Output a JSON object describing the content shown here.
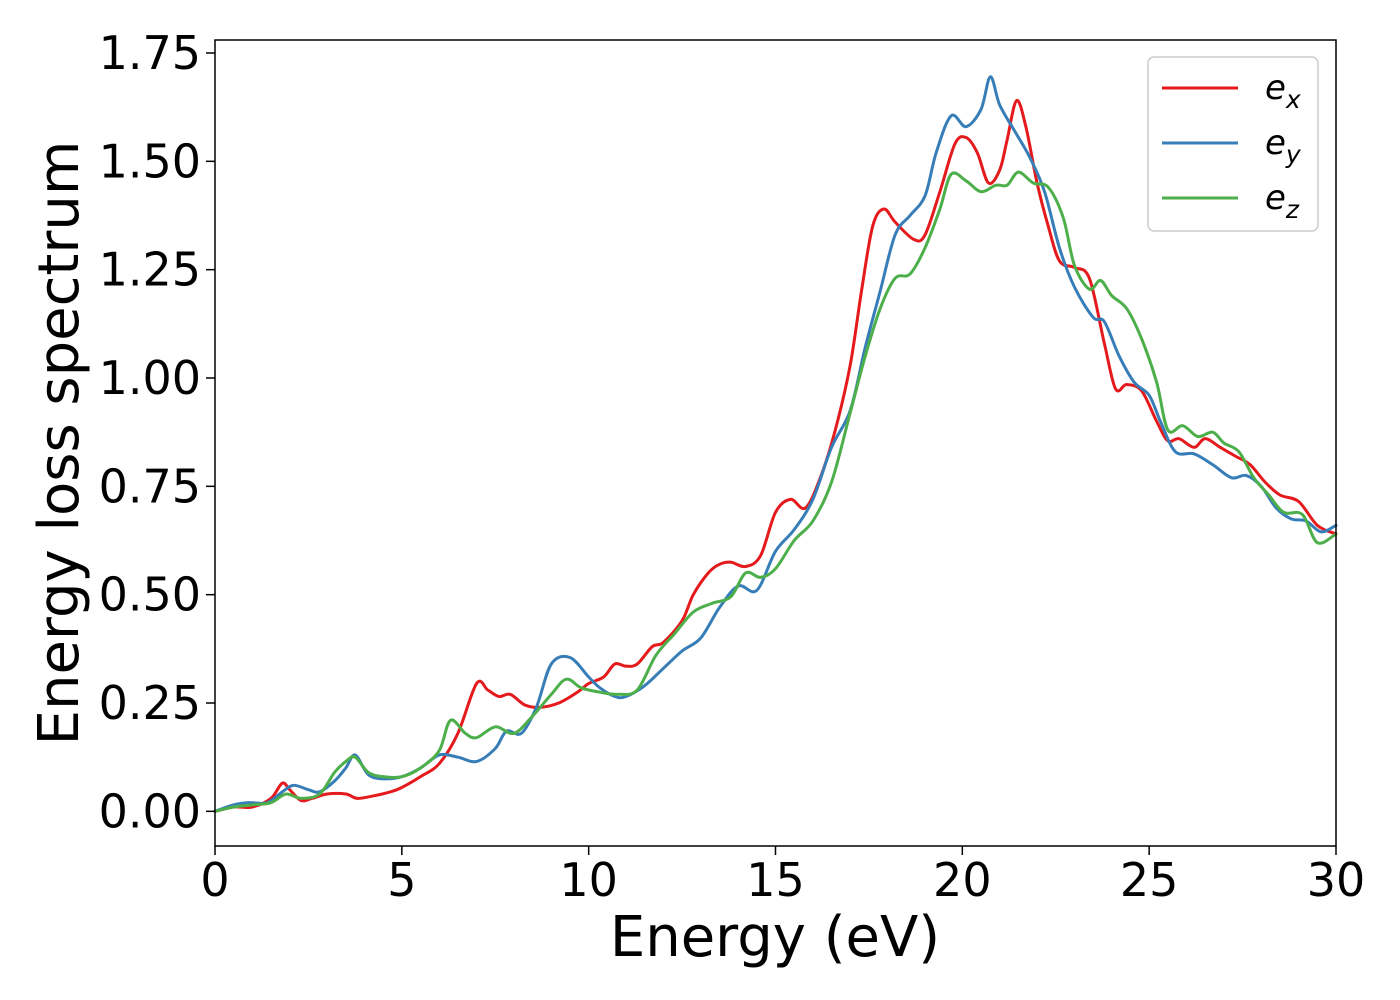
{
  "chart_data": {
    "type": "line",
    "title": "",
    "xlabel": "Energy (eV)",
    "ylabel": "Energy loss spectrum",
    "xlim": [
      0,
      30
    ],
    "ylim": [
      -0.08,
      1.78
    ],
    "xticks": [
      0,
      5,
      10,
      15,
      20,
      25,
      30
    ],
    "xtick_labels": [
      "0",
      "5",
      "10",
      "15",
      "20",
      "25",
      "30"
    ],
    "yticks": [
      0,
      0.25,
      0.5,
      0.75,
      1.0,
      1.25,
      1.5,
      1.75
    ],
    "ytick_labels": [
      "0.00",
      "0.25",
      "0.50",
      "0.75",
      "1.00",
      "1.25",
      "1.50",
      "1.75"
    ],
    "grid": false,
    "legend_position": "top-right",
    "series": [
      {
        "name": "x",
        "color": "#e41a1c",
        "points": [
          [
            0,
            0
          ],
          [
            0.5,
            0.01
          ],
          [
            1,
            0.01
          ],
          [
            1.5,
            0.03
          ],
          [
            1.8,
            0.065
          ],
          [
            2,
            0.05
          ],
          [
            2.3,
            0.025
          ],
          [
            2.6,
            0.03
          ],
          [
            3,
            0.04
          ],
          [
            3.5,
            0.04
          ],
          [
            3.8,
            0.03
          ],
          [
            4.2,
            0.035
          ],
          [
            4.7,
            0.045
          ],
          [
            5,
            0.055
          ],
          [
            5.5,
            0.08
          ],
          [
            6,
            0.11
          ],
          [
            6.5,
            0.18
          ],
          [
            7,
            0.295
          ],
          [
            7.3,
            0.28
          ],
          [
            7.6,
            0.265
          ],
          [
            7.9,
            0.27
          ],
          [
            8.3,
            0.245
          ],
          [
            8.7,
            0.24
          ],
          [
            9.2,
            0.25
          ],
          [
            9.7,
            0.275
          ],
          [
            10,
            0.295
          ],
          [
            10.4,
            0.31
          ],
          [
            10.7,
            0.34
          ],
          [
            11,
            0.335
          ],
          [
            11.3,
            0.34
          ],
          [
            11.7,
            0.38
          ],
          [
            12,
            0.39
          ],
          [
            12.5,
            0.44
          ],
          [
            12.8,
            0.5
          ],
          [
            13.2,
            0.55
          ],
          [
            13.5,
            0.57
          ],
          [
            13.8,
            0.575
          ],
          [
            14.2,
            0.565
          ],
          [
            14.6,
            0.59
          ],
          [
            15,
            0.69
          ],
          [
            15.4,
            0.72
          ],
          [
            15.8,
            0.7
          ],
          [
            16.2,
            0.77
          ],
          [
            16.6,
            0.88
          ],
          [
            17,
            1.03
          ],
          [
            17.3,
            1.2
          ],
          [
            17.6,
            1.35
          ],
          [
            17.9,
            1.39
          ],
          [
            18.2,
            1.36
          ],
          [
            18.7,
            1.32
          ],
          [
            19,
            1.33
          ],
          [
            19.4,
            1.43
          ],
          [
            19.8,
            1.54
          ],
          [
            20.1,
            1.555
          ],
          [
            20.4,
            1.52
          ],
          [
            20.7,
            1.45
          ],
          [
            21,
            1.48
          ],
          [
            21.2,
            1.55
          ],
          [
            21.45,
            1.64
          ],
          [
            21.7,
            1.58
          ],
          [
            22,
            1.45
          ],
          [
            22.3,
            1.35
          ],
          [
            22.6,
            1.27
          ],
          [
            23,
            1.255
          ],
          [
            23.4,
            1.23
          ],
          [
            23.8,
            1.08
          ],
          [
            24.1,
            0.975
          ],
          [
            24.4,
            0.985
          ],
          [
            24.8,
            0.97
          ],
          [
            25.2,
            0.9
          ],
          [
            25.5,
            0.855
          ],
          [
            25.8,
            0.86
          ],
          [
            26.2,
            0.84
          ],
          [
            26.5,
            0.86
          ],
          [
            26.9,
            0.84
          ],
          [
            27.3,
            0.82
          ],
          [
            27.7,
            0.8
          ],
          [
            28.1,
            0.76
          ],
          [
            28.5,
            0.73
          ],
          [
            29,
            0.715
          ],
          [
            29.5,
            0.66
          ],
          [
            30,
            0.64
          ]
        ]
      },
      {
        "name": "y",
        "color": "#377eb8",
        "points": [
          [
            0,
            0
          ],
          [
            0.5,
            0.015
          ],
          [
            0.9,
            0.02
          ],
          [
            1.4,
            0.02
          ],
          [
            1.8,
            0.045
          ],
          [
            2.1,
            0.06
          ],
          [
            2.5,
            0.05
          ],
          [
            2.8,
            0.045
          ],
          [
            3.2,
            0.07
          ],
          [
            3.5,
            0.1
          ],
          [
            3.75,
            0.13
          ],
          [
            4.1,
            0.085
          ],
          [
            4.5,
            0.075
          ],
          [
            5,
            0.08
          ],
          [
            5.5,
            0.1
          ],
          [
            6,
            0.13
          ],
          [
            6.5,
            0.125
          ],
          [
            7,
            0.115
          ],
          [
            7.5,
            0.145
          ],
          [
            7.8,
            0.185
          ],
          [
            8.2,
            0.18
          ],
          [
            8.6,
            0.24
          ],
          [
            9,
            0.34
          ],
          [
            9.5,
            0.355
          ],
          [
            10,
            0.31
          ],
          [
            10.3,
            0.285
          ],
          [
            10.7,
            0.265
          ],
          [
            11,
            0.265
          ],
          [
            11.5,
            0.29
          ],
          [
            12,
            0.33
          ],
          [
            12.5,
            0.37
          ],
          [
            13,
            0.4
          ],
          [
            13.5,
            0.47
          ],
          [
            14,
            0.52
          ],
          [
            14.5,
            0.51
          ],
          [
            15,
            0.6
          ],
          [
            15.5,
            0.65
          ],
          [
            16,
            0.72
          ],
          [
            16.5,
            0.84
          ],
          [
            17,
            0.925
          ],
          [
            17.4,
            1.07
          ],
          [
            17.8,
            1.2
          ],
          [
            18.2,
            1.33
          ],
          [
            18.6,
            1.375
          ],
          [
            19,
            1.42
          ],
          [
            19.3,
            1.52
          ],
          [
            19.7,
            1.605
          ],
          [
            20.1,
            1.58
          ],
          [
            20.5,
            1.62
          ],
          [
            20.75,
            1.695
          ],
          [
            21,
            1.63
          ],
          [
            21.4,
            1.57
          ],
          [
            21.8,
            1.51
          ],
          [
            22.2,
            1.43
          ],
          [
            22.6,
            1.3
          ],
          [
            23,
            1.21
          ],
          [
            23.5,
            1.14
          ],
          [
            23.8,
            1.13
          ],
          [
            24.2,
            1.05
          ],
          [
            24.6,
            0.99
          ],
          [
            25,
            0.96
          ],
          [
            25.3,
            0.9
          ],
          [
            25.7,
            0.83
          ],
          [
            26.2,
            0.825
          ],
          [
            26.7,
            0.8
          ],
          [
            27.2,
            0.77
          ],
          [
            27.6,
            0.775
          ],
          [
            28,
            0.75
          ],
          [
            28.4,
            0.7
          ],
          [
            28.8,
            0.675
          ],
          [
            29.2,
            0.67
          ],
          [
            29.6,
            0.645
          ],
          [
            30,
            0.66
          ]
        ]
      },
      {
        "name": "z",
        "color": "#4daf4a",
        "points": [
          [
            0,
            0
          ],
          [
            0.5,
            0.01
          ],
          [
            1,
            0.015
          ],
          [
            1.5,
            0.02
          ],
          [
            1.9,
            0.04
          ],
          [
            2.3,
            0.03
          ],
          [
            2.8,
            0.04
          ],
          [
            3.2,
            0.09
          ],
          [
            3.5,
            0.115
          ],
          [
            3.75,
            0.125
          ],
          [
            4.1,
            0.09
          ],
          [
            4.5,
            0.08
          ],
          [
            5,
            0.08
          ],
          [
            5.5,
            0.1
          ],
          [
            6,
            0.14
          ],
          [
            6.3,
            0.21
          ],
          [
            6.7,
            0.18
          ],
          [
            7,
            0.17
          ],
          [
            7.5,
            0.195
          ],
          [
            8,
            0.18
          ],
          [
            8.5,
            0.22
          ],
          [
            9,
            0.27
          ],
          [
            9.4,
            0.305
          ],
          [
            9.8,
            0.285
          ],
          [
            10.3,
            0.275
          ],
          [
            10.8,
            0.27
          ],
          [
            11.3,
            0.28
          ],
          [
            11.8,
            0.36
          ],
          [
            12.3,
            0.41
          ],
          [
            12.8,
            0.46
          ],
          [
            13.3,
            0.48
          ],
          [
            13.8,
            0.495
          ],
          [
            14.2,
            0.55
          ],
          [
            14.6,
            0.54
          ],
          [
            15,
            0.56
          ],
          [
            15.5,
            0.625
          ],
          [
            16,
            0.67
          ],
          [
            16.5,
            0.76
          ],
          [
            17,
            0.92
          ],
          [
            17.4,
            1.05
          ],
          [
            17.8,
            1.16
          ],
          [
            18.2,
            1.23
          ],
          [
            18.6,
            1.24
          ],
          [
            19,
            1.3
          ],
          [
            19.4,
            1.39
          ],
          [
            19.7,
            1.47
          ],
          [
            20.1,
            1.455
          ],
          [
            20.5,
            1.43
          ],
          [
            20.9,
            1.445
          ],
          [
            21.2,
            1.445
          ],
          [
            21.5,
            1.475
          ],
          [
            21.9,
            1.45
          ],
          [
            22.3,
            1.44
          ],
          [
            22.7,
            1.37
          ],
          [
            23,
            1.26
          ],
          [
            23.4,
            1.205
          ],
          [
            23.7,
            1.225
          ],
          [
            24,
            1.19
          ],
          [
            24.4,
            1.16
          ],
          [
            24.8,
            1.09
          ],
          [
            25.2,
            0.99
          ],
          [
            25.5,
            0.88
          ],
          [
            25.9,
            0.89
          ],
          [
            26.3,
            0.865
          ],
          [
            26.7,
            0.875
          ],
          [
            27,
            0.85
          ],
          [
            27.4,
            0.83
          ],
          [
            27.8,
            0.77
          ],
          [
            28.2,
            0.73
          ],
          [
            28.6,
            0.69
          ],
          [
            29.1,
            0.685
          ],
          [
            29.5,
            0.62
          ],
          [
            30,
            0.64
          ]
        ]
      }
    ]
  }
}
